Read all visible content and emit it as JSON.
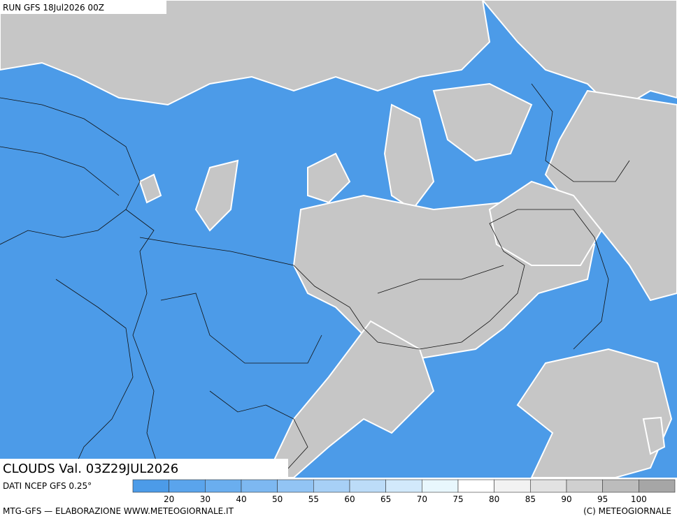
{
  "header": {
    "run": "RUN GFS 18Jul2026 00Z"
  },
  "title": {
    "text": "CLOUDS Val. 03Z29JUL2026"
  },
  "legend": {
    "source": "DATI NCEP GFS 0.25°",
    "ticks": [
      20,
      30,
      40,
      50,
      55,
      60,
      65,
      70,
      75,
      80,
      85,
      90,
      95,
      100
    ],
    "colors": [
      "#4c9be8",
      "#5aa4ec",
      "#6aaeef",
      "#7db8f1",
      "#92c4f4",
      "#a7d0f6",
      "#bcdcf8",
      "#d2e9fb",
      "#e8f7fd",
      "#ffffff",
      "#f2f2f2",
      "#e2e2e2",
      "#d0d0d0",
      "#bcbcbc",
      "#a6a6a6"
    ]
  },
  "footer": {
    "left": "MTG-GFS — ELABORAZIONE WWW.METEOGIORNALE.IT",
    "right": "(C) METEOGIORNALE"
  }
}
